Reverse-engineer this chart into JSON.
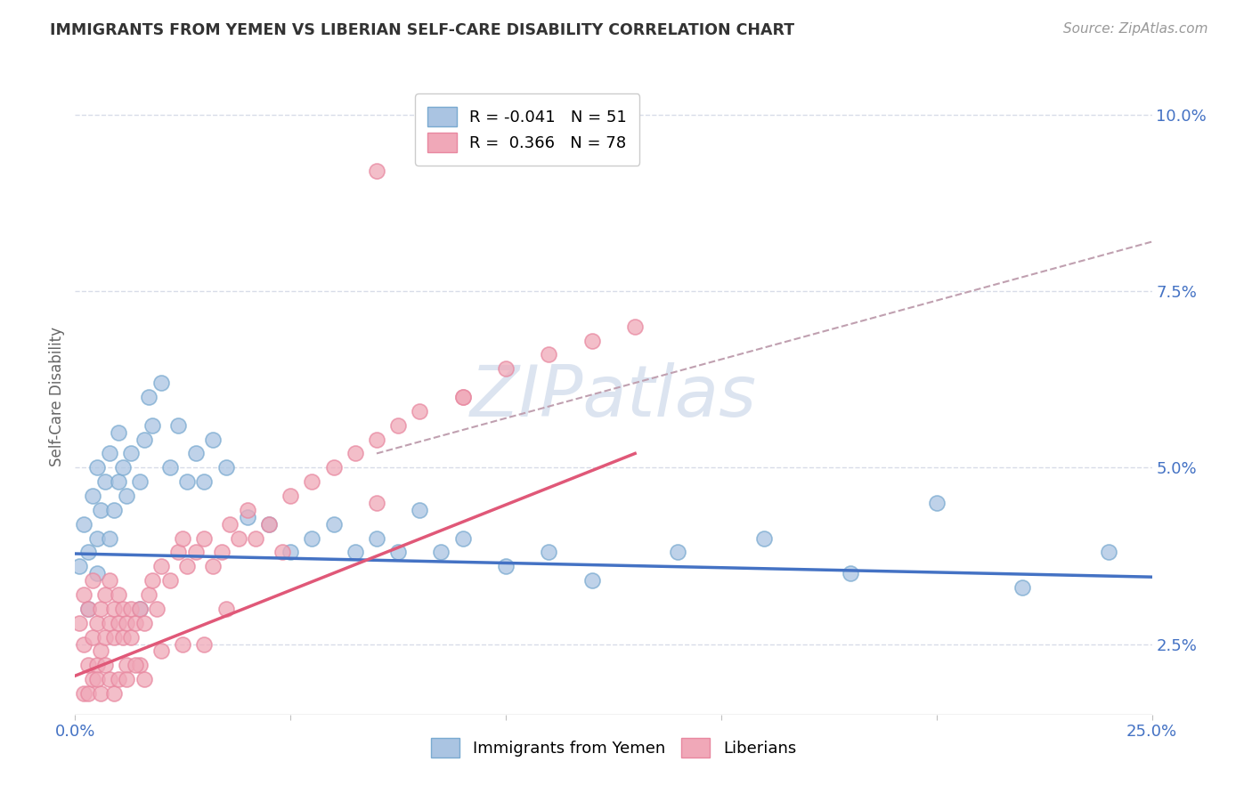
{
  "title": "IMMIGRANTS FROM YEMEN VS LIBERIAN SELF-CARE DISABILITY CORRELATION CHART",
  "source": "Source: ZipAtlas.com",
  "ylabel": "Self-Care Disability",
  "xlim": [
    0.0,
    0.25
  ],
  "ylim": [
    0.015,
    0.105
  ],
  "yticks_right": [
    0.025,
    0.05,
    0.075,
    0.1
  ],
  "yticklabels_right": [
    "2.5%",
    "5.0%",
    "7.5%",
    "10.0%"
  ],
  "blue_R": -0.041,
  "blue_N": 51,
  "pink_R": 0.366,
  "pink_N": 78,
  "blue_color": "#aac4e2",
  "pink_color": "#f0a8b8",
  "blue_edge_color": "#7aaad0",
  "pink_edge_color": "#e888a0",
  "blue_line_color": "#4472c4",
  "pink_line_color": "#e05878",
  "dash_line_color": "#c0a0b0",
  "background_color": "#ffffff",
  "grid_color": "#d8dce8",
  "watermark_color": "#dce4f0",
  "blue_scatter_x": [
    0.001,
    0.002,
    0.003,
    0.004,
    0.005,
    0.005,
    0.006,
    0.007,
    0.008,
    0.009,
    0.01,
    0.01,
    0.011,
    0.012,
    0.013,
    0.015,
    0.016,
    0.017,
    0.018,
    0.02,
    0.022,
    0.024,
    0.026,
    0.028,
    0.03,
    0.032,
    0.035,
    0.04,
    0.045,
    0.05,
    0.055,
    0.06,
    0.065,
    0.07,
    0.075,
    0.08,
    0.085,
    0.09,
    0.1,
    0.11,
    0.12,
    0.14,
    0.16,
    0.18,
    0.2,
    0.22,
    0.24,
    0.003,
    0.005,
    0.008,
    0.015
  ],
  "blue_scatter_y": [
    0.036,
    0.042,
    0.038,
    0.046,
    0.04,
    0.05,
    0.044,
    0.048,
    0.052,
    0.044,
    0.048,
    0.055,
    0.05,
    0.046,
    0.052,
    0.048,
    0.054,
    0.06,
    0.056,
    0.062,
    0.05,
    0.056,
    0.048,
    0.052,
    0.048,
    0.054,
    0.05,
    0.043,
    0.042,
    0.038,
    0.04,
    0.042,
    0.038,
    0.04,
    0.038,
    0.044,
    0.038,
    0.04,
    0.036,
    0.038,
    0.034,
    0.038,
    0.04,
    0.035,
    0.045,
    0.033,
    0.038,
    0.03,
    0.035,
    0.04,
    0.03
  ],
  "pink_scatter_x": [
    0.001,
    0.002,
    0.002,
    0.003,
    0.003,
    0.004,
    0.004,
    0.005,
    0.005,
    0.006,
    0.006,
    0.007,
    0.007,
    0.008,
    0.008,
    0.009,
    0.009,
    0.01,
    0.01,
    0.011,
    0.011,
    0.012,
    0.012,
    0.013,
    0.013,
    0.014,
    0.015,
    0.015,
    0.016,
    0.017,
    0.018,
    0.019,
    0.02,
    0.022,
    0.024,
    0.025,
    0.026,
    0.028,
    0.03,
    0.032,
    0.034,
    0.036,
    0.038,
    0.04,
    0.042,
    0.045,
    0.048,
    0.05,
    0.055,
    0.06,
    0.065,
    0.07,
    0.075,
    0.08,
    0.09,
    0.1,
    0.11,
    0.12,
    0.13,
    0.002,
    0.003,
    0.004,
    0.005,
    0.006,
    0.007,
    0.008,
    0.009,
    0.01,
    0.012,
    0.014,
    0.016,
    0.02,
    0.025,
    0.03,
    0.035,
    0.07,
    0.09,
    0.07
  ],
  "pink_scatter_y": [
    0.028,
    0.025,
    0.032,
    0.03,
    0.022,
    0.026,
    0.034,
    0.028,
    0.022,
    0.03,
    0.024,
    0.026,
    0.032,
    0.028,
    0.034,
    0.026,
    0.03,
    0.028,
    0.032,
    0.026,
    0.03,
    0.028,
    0.022,
    0.026,
    0.03,
    0.028,
    0.022,
    0.03,
    0.028,
    0.032,
    0.034,
    0.03,
    0.036,
    0.034,
    0.038,
    0.04,
    0.036,
    0.038,
    0.04,
    0.036,
    0.038,
    0.042,
    0.04,
    0.044,
    0.04,
    0.042,
    0.038,
    0.046,
    0.048,
    0.05,
    0.052,
    0.054,
    0.056,
    0.058,
    0.06,
    0.064,
    0.066,
    0.068,
    0.07,
    0.018,
    0.018,
    0.02,
    0.02,
    0.018,
    0.022,
    0.02,
    0.018,
    0.02,
    0.02,
    0.022,
    0.02,
    0.024,
    0.025,
    0.025,
    0.03,
    0.045,
    0.06,
    0.092
  ],
  "blue_trend_x": [
    0.0,
    0.25
  ],
  "blue_trend_y": [
    0.0378,
    0.0345
  ],
  "pink_trend_x": [
    0.0,
    0.13
  ],
  "pink_trend_y": [
    0.0205,
    0.052
  ],
  "dash_trend_x": [
    0.07,
    0.25
  ],
  "dash_trend_y": [
    0.052,
    0.082
  ]
}
